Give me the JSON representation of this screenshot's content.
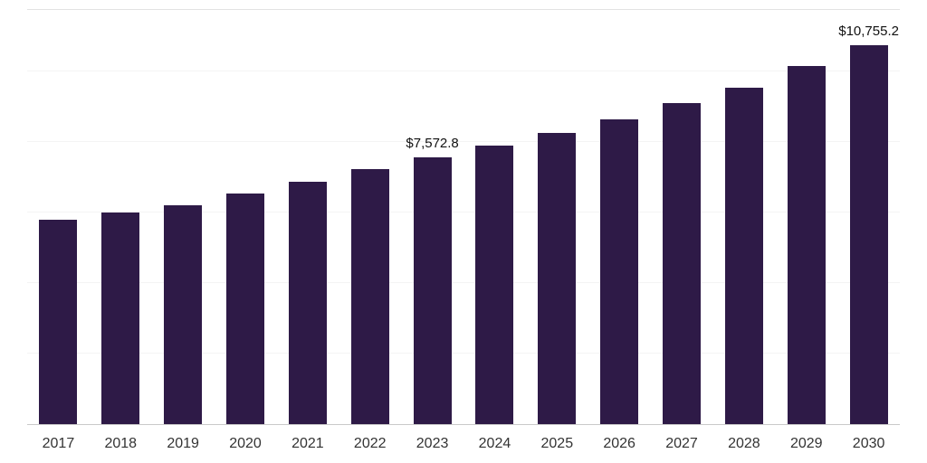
{
  "chart_data": {
    "type": "bar",
    "title": "",
    "xlabel": "",
    "ylabel": "",
    "categories": [
      "2017",
      "2018",
      "2019",
      "2020",
      "2021",
      "2022",
      "2023",
      "2024",
      "2025",
      "2026",
      "2027",
      "2028",
      "2029",
      "2030"
    ],
    "values": [
      5800,
      6000,
      6200,
      6550,
      6880,
      7240,
      7572.8,
      7900,
      8260,
      8650,
      9100,
      9550,
      10150,
      10755.2
    ],
    "data_labels": {
      "2023": "$7,572.8",
      "2030": "$10,755.2"
    },
    "ylim": [
      0,
      11750
    ],
    "grid_step": 2000,
    "grid": "horizontal-faint",
    "legend_position": "none",
    "bar_color": "#2e1a47",
    "axis_line_color": "#c9c9c9",
    "gridline_color": "#f4f4f4",
    "label_color": "#333333",
    "value_label_color": "#111111"
  }
}
